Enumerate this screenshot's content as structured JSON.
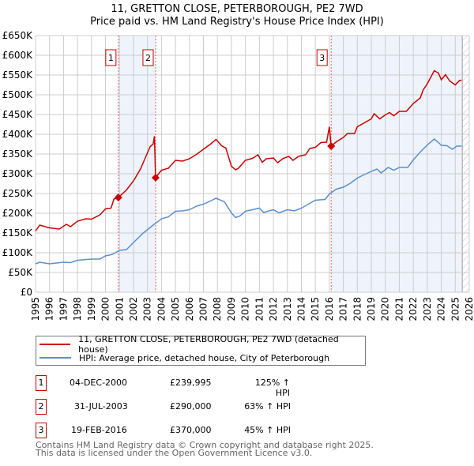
{
  "title_line1": "11, GRETTON CLOSE, PETERBOROUGH, PE2 7WD",
  "title_line2": "Price paid vs. HM Land Registry's House Price Index (HPI)",
  "colors": {
    "property": "#cc0000",
    "hpi": "#5b8fd1",
    "shade": "#eef3fc",
    "grid": "#cccccc"
  },
  "chart_data": {
    "type": "line",
    "title": "Price paid vs. HM Land Registry's House Price Index (HPI)",
    "xlim": [
      1995,
      2026
    ],
    "ylim": [
      0,
      650000
    ],
    "y_ticks": [
      0,
      50000,
      100000,
      150000,
      200000,
      250000,
      300000,
      350000,
      400000,
      450000,
      500000,
      550000,
      600000,
      650000
    ],
    "y_tick_labels": [
      "£0",
      "£50K",
      "£100K",
      "£150K",
      "£200K",
      "£250K",
      "£300K",
      "£350K",
      "£400K",
      "£450K",
      "£500K",
      "£550K",
      "£600K",
      "£650K"
    ],
    "x_ticks": [
      1995,
      1996,
      1997,
      1998,
      1999,
      2000,
      2001,
      2002,
      2003,
      2004,
      2005,
      2006,
      2007,
      2008,
      2009,
      2010,
      2011,
      2012,
      2013,
      2014,
      2015,
      2016,
      2017,
      2018,
      2019,
      2020,
      2021,
      2022,
      2023,
      2024,
      2025,
      2026
    ],
    "grid": true,
    "forecast_hatch_from": 2025.5,
    "series": [
      {
        "name": "11, GRETTON CLOSE, PETERBOROUGH, PE2 7WD (detached house)",
        "color": "#cc0000",
        "x": [
          1995,
          1995.3,
          1996,
          1996.7,
          1997.2,
          1997.5,
          1998,
          1998.6,
          1999,
          1999.6,
          2000,
          2000.4,
          2000.6,
          2000.92,
          2001.5,
          2002,
          2002.5,
          2002.9,
          2003.2,
          2003.4,
          2003.5,
          2003.58,
          2004,
          2004.5,
          2005,
          2005.5,
          2006,
          2006.5,
          2007,
          2007.5,
          2007.9,
          2008.3,
          2008.6,
          2009,
          2009.3,
          2009.5,
          2010,
          2010.5,
          2010.9,
          2011.2,
          2011.5,
          2012,
          2012.3,
          2012.7,
          2013.1,
          2013.4,
          2013.8,
          2014.3,
          2014.6,
          2015,
          2015.4,
          2015.8,
          2016.0,
          2016.13,
          2016.5,
          2017,
          2017.3,
          2017.8,
          2018,
          2018.5,
          2019,
          2019.2,
          2019.6,
          2020,
          2020.3,
          2020.6,
          2021,
          2021.5,
          2022,
          2022.5,
          2022.7,
          2023,
          2023.5,
          2023.8,
          2024,
          2024.3,
          2024.6,
          2025,
          2025.3,
          2025.45
        ],
        "y": [
          155000,
          170000,
          163000,
          160000,
          172000,
          166000,
          180000,
          186000,
          185000,
          196000,
          211000,
          213000,
          236000,
          239995,
          259000,
          282000,
          312000,
          345000,
          369000,
          375000,
          395000,
          290000,
          309000,
          314000,
          334000,
          332000,
          338000,
          349000,
          362000,
          375000,
          387000,
          371000,
          365000,
          319000,
          310000,
          314000,
          334000,
          339000,
          348000,
          329000,
          338000,
          340000,
          328000,
          339000,
          344000,
          334000,
          344000,
          348000,
          364000,
          367000,
          379000,
          380000,
          419000,
          370000,
          381000,
          392000,
          402000,
          402000,
          419000,
          429000,
          439000,
          452000,
          439000,
          449000,
          455000,
          447000,
          458000,
          458000,
          478000,
          492000,
          512000,
          528000,
          561000,
          555000,
          538000,
          551000,
          535000,
          525000,
          536000,
          537000
        ]
      },
      {
        "name": "HPI: Average price, detached house, City of Peterborough",
        "color": "#5b8fd1",
        "x": [
          1995,
          1995.3,
          1996,
          1997,
          1997.5,
          1998,
          1999,
          1999.6,
          2000,
          2000.5,
          2001,
          2001.5,
          2002,
          2002.7,
          2003.3,
          2003.7,
          2004,
          2004.5,
          2005,
          2005.5,
          2006,
          2006.5,
          2007,
          2007.5,
          2007.9,
          2008.5,
          2009,
          2009.3,
          2009.6,
          2010,
          2010.5,
          2011,
          2011.3,
          2012,
          2012.4,
          2013,
          2013.5,
          2014,
          2014.5,
          2015,
          2015.7,
          2016,
          2016.5,
          2017,
          2017.5,
          2018,
          2018.5,
          2019,
          2019.4,
          2019.7,
          2020.2,
          2020.6,
          2021,
          2021.6,
          2022,
          2022.5,
          2023,
          2023.5,
          2023.8,
          2024,
          2024.4,
          2024.8,
          2025.1,
          2025.45
        ],
        "y": [
          72000,
          76000,
          72000,
          76000,
          75000,
          81000,
          84000,
          84000,
          92000,
          96000,
          106000,
          108000,
          126000,
          150000,
          167000,
          178000,
          186000,
          191000,
          205000,
          206000,
          209000,
          218000,
          223000,
          231000,
          238000,
          229000,
          201000,
          189000,
          193000,
          205000,
          209000,
          213000,
          202000,
          209000,
          201000,
          209000,
          206000,
          213000,
          223000,
          233000,
          235000,
          249000,
          261000,
          266000,
          276000,
          289000,
          298000,
          306000,
          312000,
          302000,
          316000,
          309000,
          316000,
          316000,
          335000,
          355000,
          373000,
          388000,
          379000,
          372000,
          371000,
          362000,
          370000,
          370000
        ]
      }
    ],
    "sales": [
      {
        "label": "1",
        "x": 2000.92,
        "y": 239995
      },
      {
        "label": "2",
        "x": 2003.58,
        "y": 290000
      },
      {
        "label": "3",
        "x": 2016.13,
        "y": 370000
      }
    ],
    "shaded_ranges": [
      [
        2000.92,
        2003.58
      ],
      [
        2016.13,
        2025.45
      ]
    ]
  },
  "legend": {
    "property": "11, GRETTON CLOSE, PETERBOROUGH, PE2 7WD (detached house)",
    "hpi": "HPI: Average price, detached house, City of Peterborough"
  },
  "transactions": [
    {
      "num": "1",
      "date": "04-DEC-2000",
      "price": "£239,995",
      "pct": "125% ↑ HPI"
    },
    {
      "num": "2",
      "date": "31-JUL-2003",
      "price": "£290,000",
      "pct": "63% ↑ HPI"
    },
    {
      "num": "3",
      "date": "19-FEB-2016",
      "price": "£370,000",
      "pct": "45% ↑ HPI"
    }
  ],
  "footer": {
    "line1": "Contains HM Land Registry data © Crown copyright and database right 2025.",
    "line2": "This data is licensed under the Open Government Licence v3.0."
  }
}
